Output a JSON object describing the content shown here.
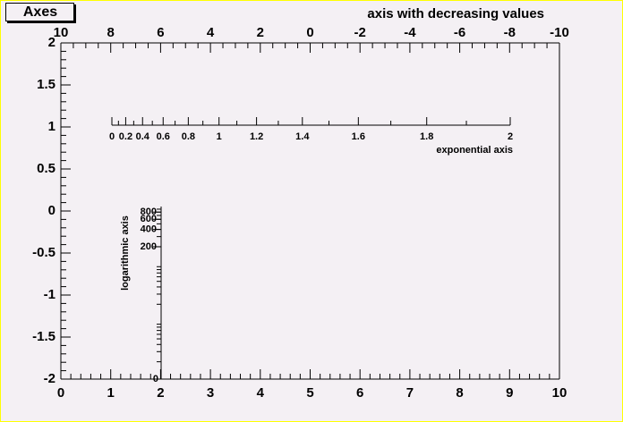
{
  "title_box": "Axes",
  "chart_data": [
    {
      "type": "axis",
      "scale": "linear",
      "xlim": [
        0,
        10
      ],
      "xticks": [
        0,
        1,
        2,
        3,
        4,
        5,
        6,
        7,
        8,
        9,
        10
      ],
      "minor_divisions": 5
    },
    {
      "type": "axis",
      "scale": "linear",
      "ylim": [
        -2,
        2
      ],
      "yticks": [
        -2,
        -1.5,
        -1,
        -0.5,
        0,
        0.5,
        1,
        1.5,
        2
      ],
      "minor_divisions": 5
    },
    {
      "type": "axis",
      "scale": "linear",
      "title": "axis with decreasing values",
      "xlim": [
        10,
        -10
      ],
      "xticks": [
        10,
        8,
        6,
        4,
        2,
        0,
        -2,
        -4,
        -6,
        -8,
        -10
      ],
      "minor_divisions": 4
    },
    {
      "type": "axis",
      "scale": "exp",
      "title": "exponential axis",
      "xlim": [
        0,
        2
      ],
      "xticks": [
        0,
        0.2,
        0.4,
        0.6,
        0.8,
        1,
        1.2,
        1.4,
        1.6,
        1.8,
        2
      ],
      "minor_divisions": 2
    },
    {
      "type": "axis",
      "scale": "log",
      "title": "logarithmic axis",
      "ylim": [
        1,
        1000
      ],
      "yticks": [
        200,
        400,
        600,
        800
      ],
      "origin_label": "0"
    }
  ]
}
